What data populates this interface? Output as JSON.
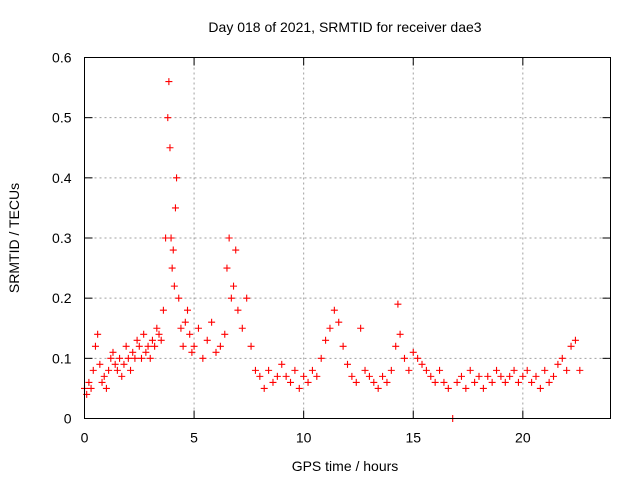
{
  "chart_data": {
    "type": "scatter",
    "title": "Day 018 of 2021, SRMTID for receiver dae3",
    "xlabel": "GPS time / hours",
    "ylabel": "SRMTID / TECUs",
    "xlim": [
      0,
      24
    ],
    "ylim": [
      0,
      0.6
    ],
    "xticks": [
      0,
      5,
      10,
      15,
      20
    ],
    "yticks": [
      0,
      0.1,
      0.2,
      0.3,
      0.4,
      0.5,
      0.6
    ],
    "grid": true,
    "marker": "+",
    "series": [
      {
        "name": "SRMTID",
        "color": "#ff0000",
        "x": [
          0.0,
          0.1,
          0.2,
          0.3,
          0.4,
          0.5,
          0.6,
          0.7,
          0.8,
          0.9,
          1.0,
          1.1,
          1.2,
          1.3,
          1.4,
          1.5,
          1.6,
          1.7,
          1.8,
          1.9,
          2.0,
          2.1,
          2.2,
          2.3,
          2.4,
          2.5,
          2.6,
          2.7,
          2.8,
          2.9,
          3.0,
          3.1,
          3.2,
          3.3,
          3.4,
          3.5,
          3.6,
          3.7,
          3.8,
          3.85,
          3.9,
          3.95,
          4.0,
          4.05,
          4.1,
          4.15,
          4.2,
          4.3,
          4.4,
          4.5,
          4.6,
          4.7,
          4.8,
          4.9,
          5.0,
          5.2,
          5.4,
          5.6,
          5.8,
          6.0,
          6.2,
          6.4,
          6.5,
          6.6,
          6.7,
          6.8,
          6.9,
          7.0,
          7.2,
          7.4,
          7.6,
          7.8,
          8.0,
          8.2,
          8.4,
          8.6,
          8.8,
          9.0,
          9.2,
          9.4,
          9.6,
          9.8,
          10.0,
          10.2,
          10.4,
          10.6,
          10.8,
          11.0,
          11.2,
          11.4,
          11.6,
          11.8,
          12.0,
          12.2,
          12.4,
          12.6,
          12.8,
          13.0,
          13.2,
          13.4,
          13.6,
          13.8,
          14.0,
          14.2,
          14.3,
          14.4,
          14.6,
          14.8,
          15.0,
          15.2,
          15.4,
          15.6,
          15.8,
          16.0,
          16.2,
          16.4,
          16.6,
          16.8,
          17.0,
          17.2,
          17.4,
          17.6,
          17.8,
          18.0,
          18.2,
          18.4,
          18.6,
          18.8,
          19.0,
          19.2,
          19.4,
          19.6,
          19.8,
          20.0,
          20.2,
          20.4,
          20.6,
          20.8,
          21.0,
          21.2,
          21.4,
          21.6,
          21.8,
          22.0,
          22.2,
          22.4,
          22.6
        ],
        "y": [
          0.05,
          0.04,
          0.06,
          0.05,
          0.08,
          0.12,
          0.14,
          0.09,
          0.06,
          0.07,
          0.05,
          0.08,
          0.1,
          0.11,
          0.09,
          0.08,
          0.1,
          0.07,
          0.09,
          0.12,
          0.1,
          0.08,
          0.11,
          0.1,
          0.13,
          0.12,
          0.1,
          0.14,
          0.11,
          0.12,
          0.1,
          0.13,
          0.12,
          0.15,
          0.14,
          0.13,
          0.18,
          0.3,
          0.5,
          0.56,
          0.45,
          0.3,
          0.25,
          0.28,
          0.22,
          0.35,
          0.4,
          0.2,
          0.15,
          0.12,
          0.16,
          0.18,
          0.14,
          0.11,
          0.12,
          0.15,
          0.1,
          0.13,
          0.16,
          0.11,
          0.12,
          0.14,
          0.25,
          0.3,
          0.2,
          0.22,
          0.28,
          0.18,
          0.15,
          0.2,
          0.12,
          0.08,
          0.07,
          0.05,
          0.08,
          0.06,
          0.07,
          0.09,
          0.07,
          0.06,
          0.08,
          0.05,
          0.07,
          0.06,
          0.08,
          0.07,
          0.1,
          0.13,
          0.15,
          0.18,
          0.16,
          0.12,
          0.09,
          0.07,
          0.06,
          0.15,
          0.08,
          0.07,
          0.06,
          0.05,
          0.07,
          0.06,
          0.08,
          0.12,
          0.19,
          0.14,
          0.1,
          0.08,
          0.11,
          0.1,
          0.09,
          0.08,
          0.07,
          0.06,
          0.08,
          0.06,
          0.05,
          0.0,
          0.06,
          0.07,
          0.05,
          0.08,
          0.06,
          0.07,
          0.05,
          0.07,
          0.06,
          0.08,
          0.07,
          0.06,
          0.07,
          0.08,
          0.06,
          0.07,
          0.08,
          0.06,
          0.07,
          0.05,
          0.08,
          0.06,
          0.07,
          0.09,
          0.1,
          0.08,
          0.12,
          0.13,
          0.08
        ]
      }
    ]
  }
}
